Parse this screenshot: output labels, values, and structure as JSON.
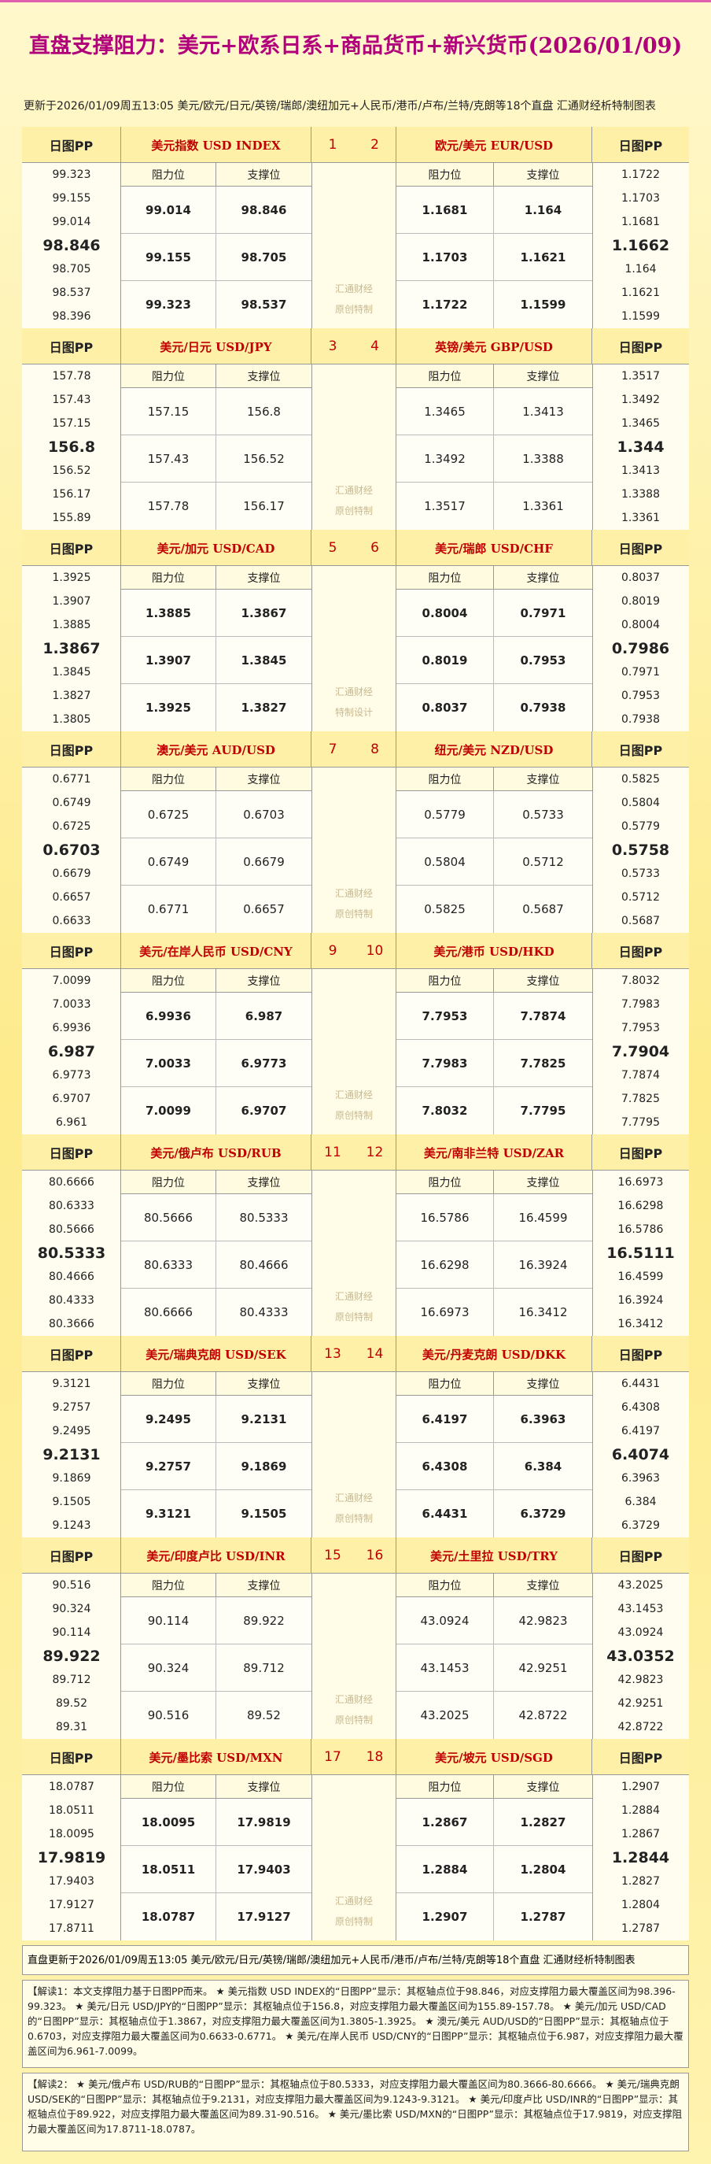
{
  "header": {
    "title": "直盘支撑阻力：美元+欧系日系+商品货币+新兴货币(2026/01/09)",
    "subtitle": "更新于2026/01/09周五13:05 美元/欧元/日元/英镑/瑞郎/澳纽加元+人民币/港币/卢布/兰特/克朗等18个直盘 汇通财经析特制图表"
  },
  "blocks": [
    {
      "numbers": [
        "1",
        "2"
      ],
      "watermark": [
        "汇通财经",
        "原创特制"
      ],
      "left": {
        "pp_label": "日图PP",
        "pair": "美元指数 USD INDEX",
        "col_headers": [
          "阻力位",
          "支撑位"
        ],
        "pp": [
          "99.323",
          "99.155",
          "99.014",
          "98.846",
          "98.705",
          "98.537",
          "98.396"
        ],
        "rows": [
          [
            "99.014",
            "98.846"
          ],
          [
            "99.155",
            "98.705"
          ],
          [
            "99.323",
            "98.537"
          ]
        ]
      },
      "right": {
        "pp_label": "日图PP",
        "pair": "欧元/美元 EUR/USD",
        "col_headers": [
          "阻力位",
          "支撑位"
        ],
        "pp": [
          "1.1722",
          "1.1703",
          "1.1681",
          "1.1662",
          "1.164",
          "1.1621",
          "1.1599"
        ],
        "rows": [
          [
            "1.1681",
            "1.164"
          ],
          [
            "1.1703",
            "1.1621"
          ],
          [
            "1.1722",
            "1.1599"
          ]
        ]
      }
    },
    {
      "numbers": [
        "3",
        "4"
      ],
      "watermark": [
        "汇通财经",
        "原创特制"
      ],
      "left": {
        "pp_label": "日图PP",
        "pair": "美元/日元 USD/JPY",
        "col_headers": [
          "阻力位",
          "支撑位"
        ],
        "pp": [
          "157.78",
          "157.43",
          "157.15",
          "156.8",
          "156.52",
          "156.17",
          "155.89"
        ],
        "rows": [
          [
            "157.15",
            "156.8"
          ],
          [
            "157.43",
            "156.52"
          ],
          [
            "157.78",
            "156.17"
          ]
        ]
      },
      "right": {
        "pp_label": "日图PP",
        "pair": "英镑/美元 GBP/USD",
        "col_headers": [
          "阻力位",
          "支撑位"
        ],
        "pp": [
          "1.3517",
          "1.3492",
          "1.3465",
          "1.344",
          "1.3413",
          "1.3388",
          "1.3361"
        ],
        "rows": [
          [
            "1.3465",
            "1.3413"
          ],
          [
            "1.3492",
            "1.3388"
          ],
          [
            "1.3517",
            "1.3361"
          ]
        ]
      }
    },
    {
      "numbers": [
        "5",
        "6"
      ],
      "watermark": [
        "汇通财经",
        "特制设计"
      ],
      "left": {
        "pp_label": "日图PP",
        "pair": "美元/加元 USD/CAD",
        "col_headers": [
          "阻力位",
          "支撑位"
        ],
        "pp": [
          "1.3925",
          "1.3907",
          "1.3885",
          "1.3867",
          "1.3845",
          "1.3827",
          "1.3805"
        ],
        "rows": [
          [
            "1.3885",
            "1.3867"
          ],
          [
            "1.3907",
            "1.3845"
          ],
          [
            "1.3925",
            "1.3827"
          ]
        ]
      },
      "right": {
        "pp_label": "日图PP",
        "pair": "美元/瑞郎 USD/CHF",
        "col_headers": [
          "阻力位",
          "支撑位"
        ],
        "pp": [
          "0.8037",
          "0.8019",
          "0.8004",
          "0.7986",
          "0.7971",
          "0.7953",
          "0.7938"
        ],
        "rows": [
          [
            "0.8004",
            "0.7971"
          ],
          [
            "0.8019",
            "0.7953"
          ],
          [
            "0.8037",
            "0.7938"
          ]
        ]
      }
    },
    {
      "numbers": [
        "7",
        "8"
      ],
      "watermark": [
        "汇通财经",
        "原创特制"
      ],
      "left": {
        "pp_label": "日图PP",
        "pair": "澳元/美元 AUD/USD",
        "col_headers": [
          "阻力位",
          "支撑位"
        ],
        "pp": [
          "0.6771",
          "0.6749",
          "0.6725",
          "0.6703",
          "0.6679",
          "0.6657",
          "0.6633"
        ],
        "rows": [
          [
            "0.6725",
            "0.6703"
          ],
          [
            "0.6749",
            "0.6679"
          ],
          [
            "0.6771",
            "0.6657"
          ]
        ]
      },
      "right": {
        "pp_label": "日图PP",
        "pair": "纽元/美元 NZD/USD",
        "col_headers": [
          "阻力位",
          "支撑位"
        ],
        "pp": [
          "0.5825",
          "0.5804",
          "0.5779",
          "0.5758",
          "0.5733",
          "0.5712",
          "0.5687"
        ],
        "rows": [
          [
            "0.5779",
            "0.5733"
          ],
          [
            "0.5804",
            "0.5712"
          ],
          [
            "0.5825",
            "0.5687"
          ]
        ]
      }
    },
    {
      "numbers": [
        "9",
        "10"
      ],
      "watermark": [
        "汇通财经",
        "原创特制"
      ],
      "left": {
        "pp_label": "日图PP",
        "pair": "美元/在岸人民币 USD/CNY",
        "col_headers": [
          "阻力位",
          "支撑位"
        ],
        "pp": [
          "7.0099",
          "7.0033",
          "6.9936",
          "6.987",
          "6.9773",
          "6.9707",
          "6.961"
        ],
        "rows": [
          [
            "6.9936",
            "6.987"
          ],
          [
            "7.0033",
            "6.9773"
          ],
          [
            "7.0099",
            "6.9707"
          ]
        ]
      },
      "right": {
        "pp_label": "日图PP",
        "pair": "美元/港币 USD/HKD",
        "col_headers": [
          "阻力位",
          "支撑位"
        ],
        "pp": [
          "7.8032",
          "7.7983",
          "7.7953",
          "7.7904",
          "7.7874",
          "7.7825",
          "7.7795"
        ],
        "rows": [
          [
            "7.7953",
            "7.7874"
          ],
          [
            "7.7983",
            "7.7825"
          ],
          [
            "7.8032",
            "7.7795"
          ]
        ]
      }
    },
    {
      "numbers": [
        "11",
        "12"
      ],
      "watermark": [
        "汇通财经",
        "原创特制"
      ],
      "left": {
        "pp_label": "日图PP",
        "pair": "美元/俄卢布 USD/RUB",
        "col_headers": [
          "阻力位",
          "支撑位"
        ],
        "pp": [
          "80.6666",
          "80.6333",
          "80.5666",
          "80.5333",
          "80.4666",
          "80.4333",
          "80.3666"
        ],
        "rows": [
          [
            "80.5666",
            "80.5333"
          ],
          [
            "80.6333",
            "80.4666"
          ],
          [
            "80.6666",
            "80.4333"
          ]
        ]
      },
      "right": {
        "pp_label": "日图PP",
        "pair": "美元/南非兰特 USD/ZAR",
        "col_headers": [
          "阻力位",
          "支撑位"
        ],
        "pp": [
          "16.6973",
          "16.6298",
          "16.5786",
          "16.5111",
          "16.4599",
          "16.3924",
          "16.3412"
        ],
        "rows": [
          [
            "16.5786",
            "16.4599"
          ],
          [
            "16.6298",
            "16.3924"
          ],
          [
            "16.6973",
            "16.3412"
          ]
        ]
      }
    },
    {
      "numbers": [
        "13",
        "14"
      ],
      "watermark": [
        "汇通财经",
        "原创特制"
      ],
      "left": {
        "pp_label": "日图PP",
        "pair": "美元/瑞典克朗 USD/SEK",
        "col_headers": [
          "阻力位",
          "支撑位"
        ],
        "pp": [
          "9.3121",
          "9.2757",
          "9.2495",
          "9.2131",
          "9.1869",
          "9.1505",
          "9.1243"
        ],
        "rows": [
          [
            "9.2495",
            "9.2131"
          ],
          [
            "9.2757",
            "9.1869"
          ],
          [
            "9.3121",
            "9.1505"
          ]
        ]
      },
      "right": {
        "pp_label": "日图PP",
        "pair": "美元/丹麦克朗 USD/DKK",
        "col_headers": [
          "阻力位",
          "支撑位"
        ],
        "pp": [
          "6.4431",
          "6.4308",
          "6.4197",
          "6.4074",
          "6.3963",
          "6.384",
          "6.3729"
        ],
        "rows": [
          [
            "6.4197",
            "6.3963"
          ],
          [
            "6.4308",
            "6.384"
          ],
          [
            "6.4431",
            "6.3729"
          ]
        ]
      }
    },
    {
      "numbers": [
        "15",
        "16"
      ],
      "watermark": [
        "汇通财经",
        "原创特制"
      ],
      "left": {
        "pp_label": "日图PP",
        "pair": "美元/印度卢比 USD/INR",
        "col_headers": [
          "阻力位",
          "支撑位"
        ],
        "pp": [
          "90.516",
          "90.324",
          "90.114",
          "89.922",
          "89.712",
          "89.52",
          "89.31"
        ],
        "rows": [
          [
            "90.114",
            "89.922"
          ],
          [
            "90.324",
            "89.712"
          ],
          [
            "90.516",
            "89.52"
          ]
        ]
      },
      "right": {
        "pp_label": "日图PP",
        "pair": "美元/土里拉 USD/TRY",
        "col_headers": [
          "阻力位",
          "支撑位"
        ],
        "pp": [
          "43.2025",
          "43.1453",
          "43.0924",
          "43.0352",
          "42.9823",
          "42.9251",
          "42.8722"
        ],
        "rows": [
          [
            "43.0924",
            "42.9823"
          ],
          [
            "43.1453",
            "42.9251"
          ],
          [
            "43.2025",
            "42.8722"
          ]
        ]
      }
    },
    {
      "numbers": [
        "17",
        "18"
      ],
      "watermark": [
        "汇通财经",
        "原创特制"
      ],
      "left": {
        "pp_label": "日图PP",
        "pair": "美元/墨比索 USD/MXN",
        "col_headers": [
          "阻力位",
          "支撑位"
        ],
        "pp": [
          "18.0787",
          "18.0511",
          "18.0095",
          "17.9819",
          "17.9403",
          "17.9127",
          "17.8711"
        ],
        "rows": [
          [
            "18.0095",
            "17.9819"
          ],
          [
            "18.0511",
            "17.9403"
          ],
          [
            "18.0787",
            "17.9127"
          ]
        ]
      },
      "right": {
        "pp_label": "日图PP",
        "pair": "美元/坡元 USD/SGD",
        "col_headers": [
          "阻力位",
          "支撑位"
        ],
        "pp": [
          "1.2907",
          "1.2884",
          "1.2867",
          "1.2844",
          "1.2827",
          "1.2804",
          "1.2787"
        ],
        "rows": [
          [
            "1.2867",
            "1.2827"
          ],
          [
            "1.2884",
            "1.2804"
          ],
          [
            "1.2907",
            "1.2787"
          ]
        ]
      }
    }
  ],
  "footer": "直盘更新于2026/01/09周五13:05 美元/欧元/日元/英镑/瑞郎/澳纽加元+人民币/港币/卢布/兰特/克朗等18个直盘 汇通财经析特制图表",
  "notes": [
    "【解读1：本文支撑阻力基于日图PP而来。 ★ 美元指数 USD INDEX的“日图PP”显示：其枢轴点位于98.846，对应支撑阻力最大覆盖区间为98.396-99.323。 ★ 美元/日元 USD/JPY的“日图PP”显示：其枢轴点位于156.8，对应支撑阻力最大覆盖区间为155.89-157.78。 ★ 美元/加元 USD/CAD的“日图PP”显示：其枢轴点位于1.3867，对应支撑阻力最大覆盖区间为1.3805-1.3925。 ★ 澳元/美元 AUD/USD的“日图PP”显示：其枢轴点位于0.6703，对应支撑阻力最大覆盖区间为0.6633-0.6771。 ★ 美元/在岸人民币 USD/CNY的“日图PP”显示：其枢轴点位于6.987，对应支撑阻力最大覆盖区间为6.961-7.0099。",
    "【解读2： ★ 美元/俄卢布 USD/RUB的“日图PP”显示：其枢轴点位于80.5333，对应支撑阻力最大覆盖区间为80.3666-80.6666。 ★ 美元/瑞典克朗 USD/SEK的“日图PP”显示：其枢轴点位于9.2131，对应支撑阻力最大覆盖区间为9.1243-9.3121。 ★ 美元/印度卢比 USD/INR的“日图PP”显示：其枢轴点位于89.922，对应支撑阻力最大覆盖区间为89.31-90.516。 ★ 美元/墨比索 USD/MXN的“日图PP”显示：其枢轴点位于17.9819，对应支撑阻力最大覆盖区间为17.8711-18.0787。"
  ]
}
